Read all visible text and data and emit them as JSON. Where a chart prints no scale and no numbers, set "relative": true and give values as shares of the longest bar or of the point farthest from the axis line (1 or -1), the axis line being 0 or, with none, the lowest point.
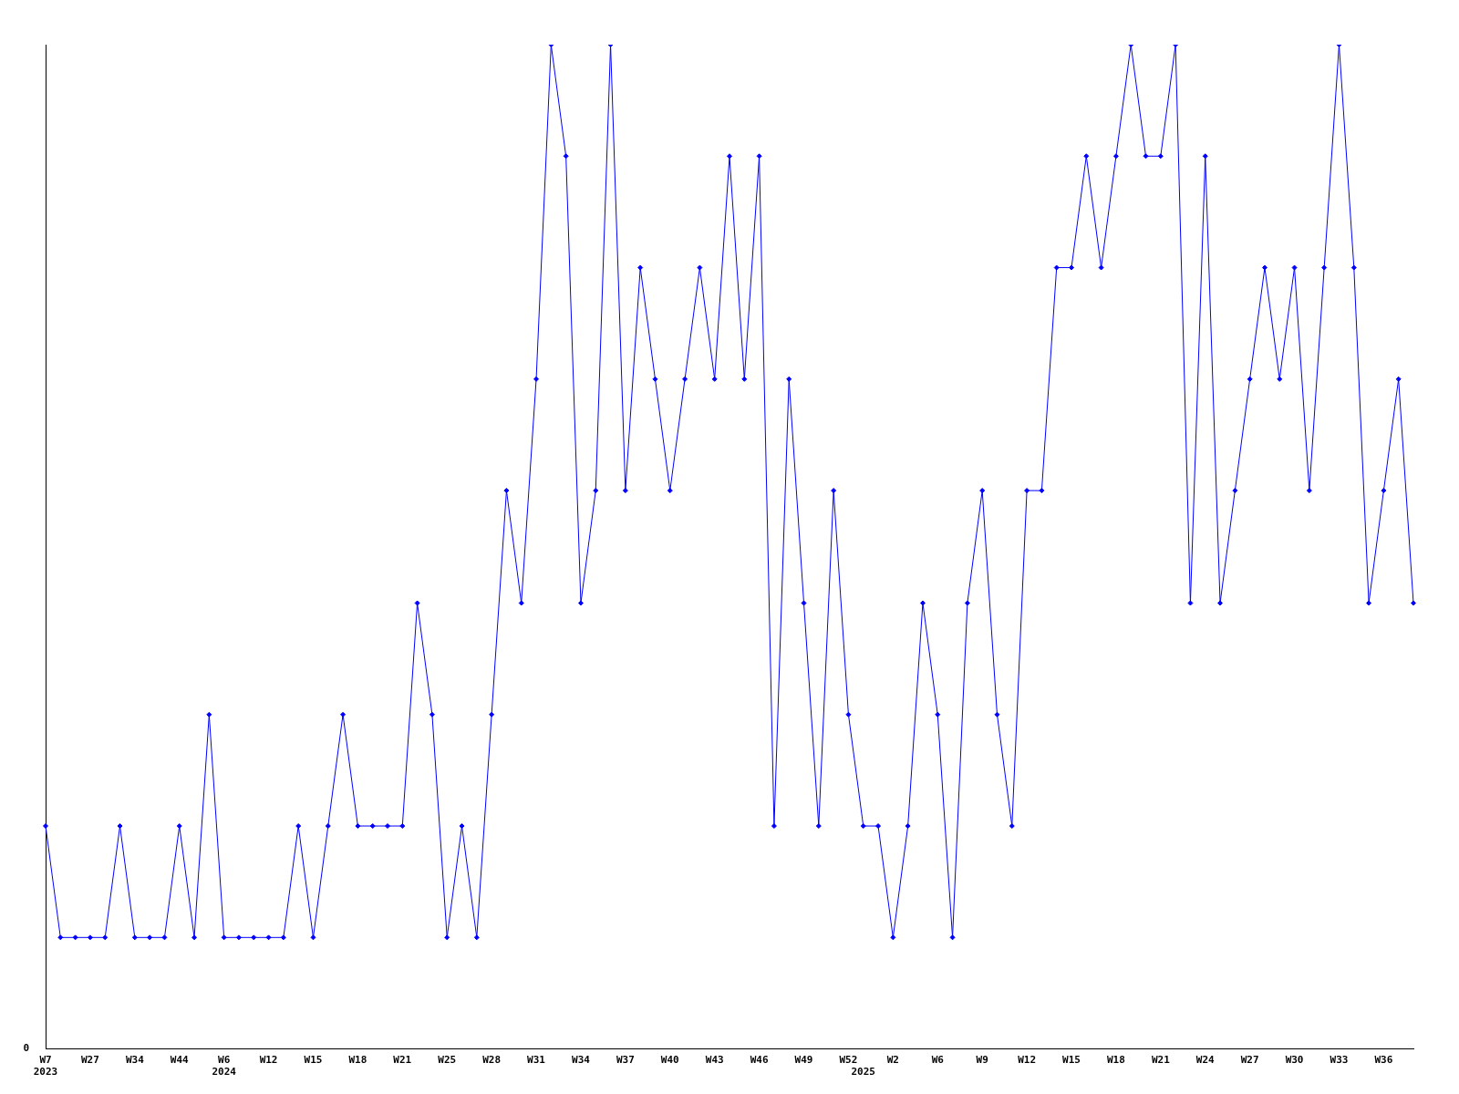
{
  "chart_data": {
    "type": "line",
    "relative": true,
    "color": "#0000ff",
    "marker": "diamond",
    "line_style": "solid",
    "grid": false,
    "legend": false,
    "annotations": [
      "0"
    ],
    "categories": [
      "W7\n2023",
      null,
      null,
      "W27",
      null,
      null,
      "W34",
      null,
      null,
      "W44",
      null,
      null,
      "W6\n2024",
      null,
      null,
      "W12",
      null,
      null,
      "W15",
      null,
      null,
      "W18",
      null,
      null,
      "W21",
      null,
      null,
      "W25",
      null,
      null,
      "W28",
      null,
      null,
      "W31",
      null,
      null,
      "W34",
      null,
      null,
      "W37",
      null,
      null,
      "W40",
      null,
      null,
      "W43",
      null,
      null,
      "W46",
      null,
      null,
      "W49",
      null,
      null,
      "W52",
      "\n2025",
      null,
      "W2",
      null,
      null,
      "W6",
      null,
      null,
      "W9",
      null,
      null,
      "W12",
      null,
      null,
      "W15",
      null,
      null,
      "W18",
      null,
      null,
      "W21",
      null,
      null,
      "W24",
      null,
      null,
      "W27",
      null,
      null,
      "W30",
      null,
      null,
      "W33",
      null,
      null,
      "W36",
      null,
      null
    ],
    "values": [
      0.222,
      0.111,
      0.111,
      0.111,
      0.111,
      0.222,
      0.111,
      0.111,
      0.111,
      0.222,
      0.111,
      0.333,
      0.111,
      0.111,
      0.111,
      0.111,
      0.111,
      0.222,
      0.111,
      0.222,
      0.333,
      0.222,
      0.222,
      0.222,
      0.222,
      0.444,
      0.333,
      0.111,
      0.222,
      0.111,
      0.333,
      0.556,
      0.444,
      0.667,
      1,
      0.889,
      0.444,
      0.556,
      1,
      0.556,
      0.778,
      0.667,
      0.556,
      0.667,
      0.778,
      0.667,
      0.889,
      0.667,
      0.889,
      0.222,
      0.667,
      0.444,
      0.222,
      0.556,
      0.333,
      0.222,
      0.222,
      0.111,
      0.222,
      0.444,
      0.333,
      0.111,
      0.444,
      0.556,
      0.333,
      0.222,
      0.556,
      0.556,
      0.778,
      0.778,
      0.889,
      0.778,
      0.889,
      1,
      0.889,
      0.889,
      1,
      0.444,
      0.889,
      0.444,
      0.556,
      0.667,
      0.778,
      0.667,
      0.778,
      0.556,
      0.778,
      1,
      0.778,
      0.444,
      0.556,
      0.667,
      0.444
    ]
  }
}
